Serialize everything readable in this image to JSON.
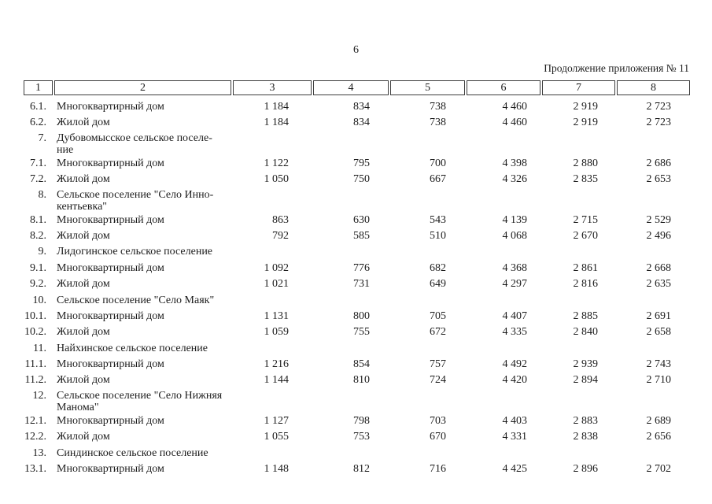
{
  "page": {
    "number": "6",
    "caption": "Продолжение приложения № 11"
  },
  "table": {
    "header": [
      "1",
      "2",
      "3",
      "4",
      "5",
      "6",
      "7",
      "8"
    ],
    "rows": [
      {
        "num": "6.1.",
        "label": "Многоквартирный дом",
        "values": [
          "1 184",
          "834",
          "738",
          "4 460",
          "2 919",
          "2 723"
        ]
      },
      {
        "num": "6.2.",
        "label": "Жилой дом",
        "values": [
          "1 184",
          "834",
          "738",
          "4 460",
          "2 919",
          "2 723"
        ]
      },
      {
        "num": "7.",
        "label": "Дубовомысское сельское поселе-\nние",
        "values": []
      },
      {
        "num": "7.1.",
        "label": "Многоквартирный дом",
        "values": [
          "1 122",
          "795",
          "700",
          "4 398",
          "2 880",
          "2 686"
        ]
      },
      {
        "num": "7.2.",
        "label": "Жилой дом",
        "values": [
          "1 050",
          "750",
          "667",
          "4 326",
          "2 835",
          "2 653"
        ]
      },
      {
        "num": "8.",
        "label": "Сельское поселение \"Село Инно-\nкентьевка\"",
        "values": []
      },
      {
        "num": "8.1.",
        "label": "Многоквартирный дом",
        "values": [
          "863",
          "630",
          "543",
          "4 139",
          "2 715",
          "2 529"
        ]
      },
      {
        "num": "8.2.",
        "label": "Жилой дом",
        "values": [
          "792",
          "585",
          "510",
          "4 068",
          "2 670",
          "2 496"
        ]
      },
      {
        "num": "9.",
        "label": "Лидогинское сельское поселение",
        "values": []
      },
      {
        "num": "9.1.",
        "label": "Многоквартирный дом",
        "values": [
          "1 092",
          "776",
          "682",
          "4 368",
          "2 861",
          "2 668"
        ]
      },
      {
        "num": "9.2.",
        "label": "Жилой дом",
        "values": [
          "1 021",
          "731",
          "649",
          "4 297",
          "2 816",
          "2 635"
        ]
      },
      {
        "num": "10.",
        "label": "Сельское поселение \"Село Маяк\"",
        "values": []
      },
      {
        "num": "10.1.",
        "label": "Многоквартирный дом",
        "values": [
          "1 131",
          "800",
          "705",
          "4 407",
          "2 885",
          "2 691"
        ]
      },
      {
        "num": "10.2.",
        "label": "Жилой дом",
        "values": [
          "1 059",
          "755",
          "672",
          "4 335",
          "2 840",
          "2 658"
        ]
      },
      {
        "num": "11.",
        "label": "Найхинское сельское поселение",
        "values": []
      },
      {
        "num": "11.1.",
        "label": "Многоквартирный дом",
        "values": [
          "1 216",
          "854",
          "757",
          "4 492",
          "2 939",
          "2 743"
        ]
      },
      {
        "num": "11.2.",
        "label": "Жилой дом",
        "values": [
          "1 144",
          "810",
          "724",
          "4 420",
          "2 894",
          "2 710"
        ]
      },
      {
        "num": "12.",
        "label": "Сельское поселение \"Село Нижняя\nМанома\"",
        "values": []
      },
      {
        "num": "12.1.",
        "label": "Многоквартирный дом",
        "values": [
          "1 127",
          "798",
          "703",
          "4 403",
          "2 883",
          "2 689"
        ]
      },
      {
        "num": "12.2.",
        "label": "Жилой дом",
        "values": [
          "1 055",
          "753",
          "670",
          "4 331",
          "2 838",
          "2 656"
        ]
      },
      {
        "num": "13.",
        "label": "Синдинское сельское поселение",
        "values": []
      },
      {
        "num": "13.1.",
        "label": "Многоквартирный дом",
        "values": [
          "1 148",
          "812",
          "716",
          "4 425",
          "2 896",
          "2 702"
        ]
      }
    ]
  }
}
